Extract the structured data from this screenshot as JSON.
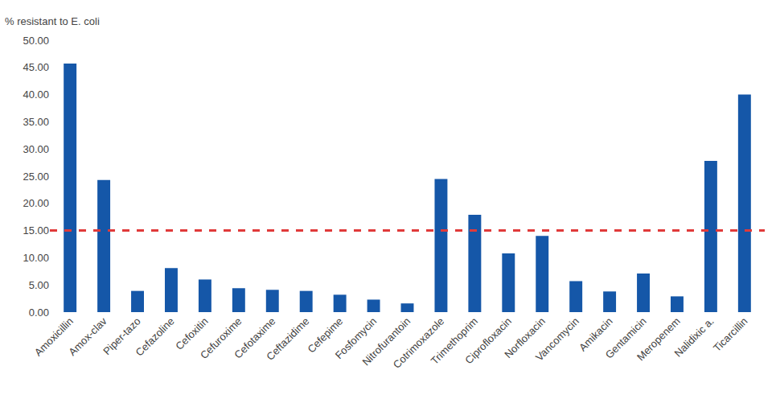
{
  "chart_data": {
    "type": "bar",
    "ylabel": "% resistant to E. coli",
    "categories": [
      "Amoxicillin",
      "Amox-clav",
      "Piper-tazo",
      "Cefazoline",
      "Cefoxitin",
      "Cefuroxime",
      "Cefotaxime",
      "Ceftazidime",
      "Cefepime",
      "Fosfomycin",
      "Nitrofurantoin",
      "Cotrimoxazole",
      "Trimethoprim",
      "Ciprofloxacin",
      "Norfloxacin",
      "Vancomycin",
      "Amikacin",
      "Gentamicin",
      "Meropenem",
      "Nalidixic a.",
      "Ticarcillin"
    ],
    "values": [
      45.7,
      24.3,
      3.9,
      8.1,
      6.0,
      4.4,
      4.1,
      3.9,
      3.2,
      2.3,
      1.6,
      24.5,
      17.9,
      10.8,
      14.0,
      5.7,
      3.8,
      7.1,
      2.9,
      27.8,
      40.0
    ],
    "color": "#1557a8",
    "ylim": [
      0,
      50
    ],
    "yticks": [
      {
        "value": 0,
        "label": "0.00"
      },
      {
        "value": 5,
        "label": "5.00"
      },
      {
        "value": 10,
        "label": "10.00"
      },
      {
        "value": 15,
        "label": "15.00"
      },
      {
        "value": 20,
        "label": "20.00"
      },
      {
        "value": 25,
        "label": "25.00"
      },
      {
        "value": 30,
        "label": "30.00"
      },
      {
        "value": 35,
        "label": "35.00"
      },
      {
        "value": 40,
        "label": "40.00"
      },
      {
        "value": 45,
        "label": "45.00"
      },
      {
        "value": 50,
        "label": "50.00"
      }
    ],
    "grid": false,
    "reference_line": {
      "value": 15,
      "color": "#e03a3a",
      "line_style": "dash"
    }
  }
}
